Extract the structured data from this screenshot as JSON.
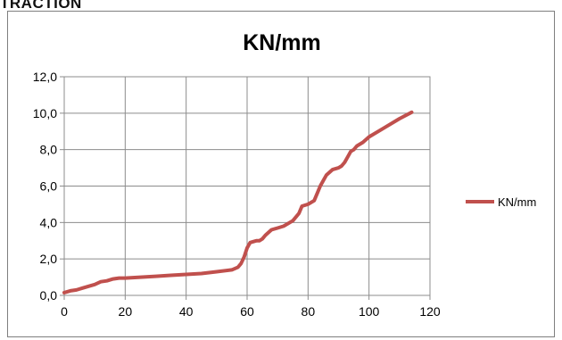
{
  "header": {
    "title": "TRACTION"
  },
  "chart_data": {
    "type": "line",
    "title": "KN/mm",
    "xlabel": "",
    "ylabel": "",
    "xlim": [
      0,
      120
    ],
    "ylim": [
      0,
      12
    ],
    "xticks": [
      0,
      20,
      40,
      60,
      80,
      100,
      120
    ],
    "yticks": [
      0,
      2,
      4,
      6,
      8,
      10,
      12
    ],
    "xtick_labels": [
      "0",
      "20",
      "40",
      "60",
      "80",
      "100",
      "120"
    ],
    "ytick_labels": [
      "0,0",
      "2,0",
      "4,0",
      "6,0",
      "8,0",
      "10,0",
      "12,0"
    ],
    "grid": true,
    "legend_position": "right",
    "series": [
      {
        "name": "KN/mm",
        "color": "#c0504d",
        "x": [
          0,
          2,
          4,
          6,
          8,
          10,
          12,
          14,
          16,
          18,
          20,
          25,
          30,
          35,
          40,
          45,
          50,
          55,
          57,
          58,
          59,
          60,
          61,
          62,
          63,
          64,
          65,
          66,
          68,
          70,
          72,
          75,
          77,
          78,
          80,
          82,
          83,
          84,
          85,
          86,
          88,
          90,
          91,
          92,
          93,
          94,
          95,
          96,
          98,
          100,
          105,
          110,
          114
        ],
        "y": [
          0.15,
          0.25,
          0.3,
          0.4,
          0.5,
          0.6,
          0.75,
          0.8,
          0.9,
          0.95,
          0.95,
          1.0,
          1.05,
          1.1,
          1.15,
          1.2,
          1.3,
          1.4,
          1.55,
          1.75,
          2.1,
          2.6,
          2.9,
          2.95,
          3.0,
          3.0,
          3.1,
          3.3,
          3.6,
          3.7,
          3.8,
          4.1,
          4.5,
          4.9,
          5.0,
          5.2,
          5.6,
          6.0,
          6.3,
          6.6,
          6.9,
          7.0,
          7.1,
          7.3,
          7.6,
          7.9,
          8.0,
          8.2,
          8.4,
          8.7,
          9.2,
          9.7,
          10.05
        ]
      }
    ]
  }
}
